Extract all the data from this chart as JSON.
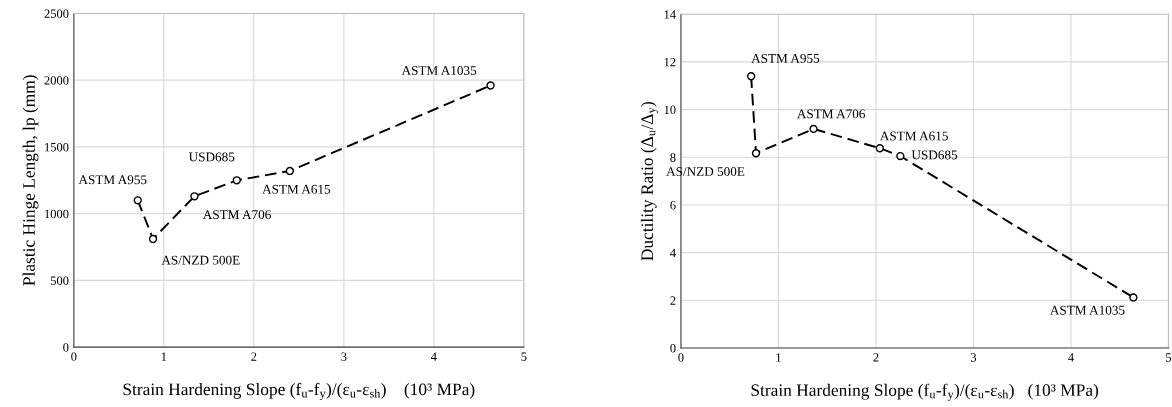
{
  "chart_data": [
    {
      "type": "line",
      "xlabel": "Strain Hardening Slope (f$_{u}$-f$_{y}$)/(ε$_{u}$-ε$_{sh}$)    (10³ MPa)",
      "ylabel": "Plastic Hinge Length, lp (mm)",
      "x": [
        0.71,
        0.88,
        1.34,
        1.81,
        2.4,
        4.63
      ],
      "series": [
        {
          "color": "#000000",
          "values": [
            1100,
            810,
            1130,
            1250,
            1320,
            1960
          ]
        }
      ],
      "xlim": [
        0,
        5
      ],
      "xticks": [
        0,
        1,
        2,
        3,
        4,
        5
      ],
      "ylim": [
        0,
        2500
      ],
      "yticks": [
        0,
        500,
        1000,
        1500,
        2000,
        2500
      ],
      "grid": true,
      "marker": "circle",
      "line_style": "dashed",
      "annotations": [
        {
          "text": "ASTM A955",
          "x": 0.71,
          "y": 1100
        },
        {
          "text": "AS/NZD 500E",
          "x": 0.88,
          "y": 810
        },
        {
          "text": "ASTM A706",
          "x": 1.34,
          "y": 1130
        },
        {
          "text": "USD685",
          "x": 1.81,
          "y": 1250
        },
        {
          "text": "ASTM A615",
          "x": 2.4,
          "y": 1320
        },
        {
          "text": "ASTM A1035",
          "x": 4.63,
          "y": 1960
        }
      ]
    },
    {
      "type": "line",
      "xlabel": "Strain Hardening Slope (f$_{u}$-f$_{y}$)/(ε$_{u}$-ε$_{sh}$)   (10³ MPa)",
      "ylabel": "Ductility Ratio (Δ$_{u}$/Δ$_{y}$)",
      "x": [
        0.72,
        0.77,
        1.36,
        2.04,
        2.25,
        4.64
      ],
      "series": [
        {
          "color": "#000000",
          "values": [
            11.4,
            8.17,
            9.19,
            8.38,
            8.05,
            2.12
          ]
        }
      ],
      "xlim": [
        0,
        5
      ],
      "xticks": [
        0,
        1,
        2,
        3,
        4,
        5
      ],
      "ylim": [
        0,
        14
      ],
      "yticks": [
        0,
        2,
        4,
        6,
        8,
        10,
        12,
        14
      ],
      "grid": true,
      "marker": "circle",
      "line_style": "dashed",
      "annotations": [
        {
          "text": "ASTM A955",
          "x": 0.72,
          "y": 11.4
        },
        {
          "text": "AS/NZD 500E",
          "x": 0.77,
          "y": 8.17
        },
        {
          "text": "ASTM A706",
          "x": 1.36,
          "y": 9.19
        },
        {
          "text": "ASTM A615",
          "x": 2.04,
          "y": 8.38
        },
        {
          "text": "USD685",
          "x": 2.25,
          "y": 8.05
        },
        {
          "text": "ASTM A1035",
          "x": 4.64,
          "y": 2.12
        }
      ]
    }
  ]
}
